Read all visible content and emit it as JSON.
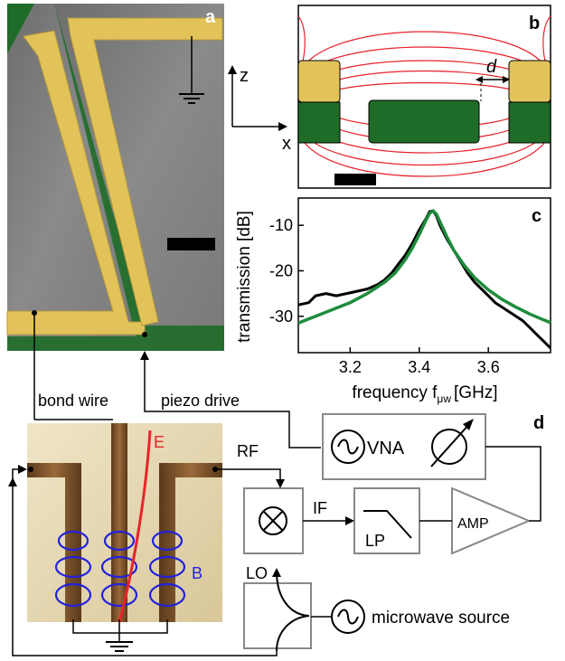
{
  "panels": {
    "a": "a",
    "b": "b",
    "c": "c",
    "d": "d"
  },
  "axes_b": {
    "z": "z",
    "x": "x",
    "d": "d"
  },
  "chart_data": {
    "type": "line",
    "xlabel_main": "frequency f",
    "xlabel_sub": "μw",
    "xlabel_unit": "[GHz]",
    "ylabel": "transmission [dB]",
    "xlim": [
      3.05,
      3.78
    ],
    "ylim": [
      -38,
      -4
    ],
    "xticks": [
      "3.2",
      "3.4",
      "3.6"
    ],
    "xtick_values": [
      3.2,
      3.4,
      3.6
    ],
    "yticks": [
      "-10",
      "-20",
      "-30"
    ],
    "ytick_values": [
      -10,
      -20,
      -30
    ],
    "series": [
      {
        "role": "measured",
        "color": "#000000",
        "x": [
          3.05,
          3.08,
          3.1,
          3.13,
          3.16,
          3.19,
          3.22,
          3.25,
          3.28,
          3.3,
          3.32,
          3.34,
          3.36,
          3.38,
          3.4,
          3.42,
          3.43,
          3.44,
          3.45,
          3.46,
          3.48,
          3.5,
          3.52,
          3.54,
          3.56,
          3.58,
          3.6,
          3.62,
          3.64,
          3.66,
          3.68,
          3.7,
          3.72,
          3.74,
          3.76,
          3.78
        ],
        "y": [
          -27.5,
          -27.0,
          -25.5,
          -25.0,
          -25.5,
          -25.0,
          -24.5,
          -24.0,
          -23.0,
          -22.0,
          -20.5,
          -18.5,
          -16.5,
          -14.0,
          -11.0,
          -8.5,
          -7.0,
          -6.8,
          -8.0,
          -10.0,
          -13.0,
          -15.5,
          -18.0,
          -20.5,
          -22.5,
          -24.0,
          -25.5,
          -27.0,
          -28.0,
          -29.0,
          -30.0,
          -31.0,
          -32.5,
          -34.0,
          -35.5,
          -37.0
        ]
      },
      {
        "role": "fit",
        "color": "#1e8c3c",
        "x": [
          3.05,
          3.1,
          3.15,
          3.2,
          3.25,
          3.3,
          3.33,
          3.36,
          3.38,
          3.4,
          3.42,
          3.43,
          3.44,
          3.45,
          3.46,
          3.48,
          3.5,
          3.53,
          3.56,
          3.6,
          3.64,
          3.68,
          3.72,
          3.76,
          3.78
        ],
        "y": [
          -31.5,
          -30.0,
          -28.5,
          -27.0,
          -25.0,
          -22.5,
          -20.5,
          -17.5,
          -15.0,
          -12.0,
          -8.8,
          -7.4,
          -6.8,
          -7.6,
          -9.2,
          -12.5,
          -15.5,
          -18.8,
          -21.5,
          -24.2,
          -26.3,
          -28.0,
          -29.5,
          -30.8,
          -31.4
        ]
      }
    ]
  },
  "circuit": {
    "bond_wire": "bond wire",
    "piezo_drive": "piezo drive",
    "rf": "RF",
    "if": "IF",
    "lo": "LO",
    "vna": "VNA",
    "lp": "LP",
    "amp": "AMP",
    "microwave_source": "microwave source",
    "e_field": "E",
    "b_field": "B"
  },
  "colors": {
    "gold": "#e2c35a",
    "green": "#1f6b28",
    "field_red": "#e8232a",
    "b_blue": "#2222dd",
    "grey_box": "#888888"
  }
}
